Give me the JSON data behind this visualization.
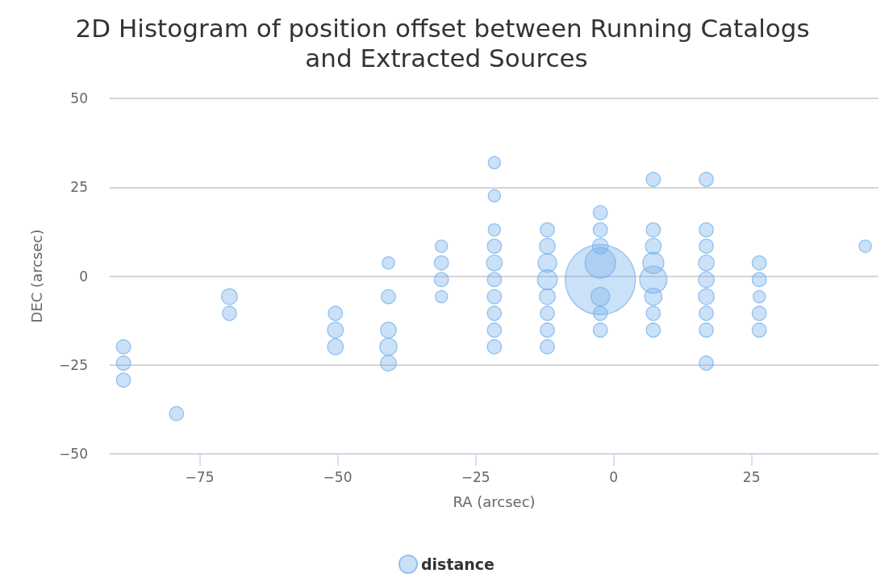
{
  "chart_data": {
    "type": "bubble",
    "title": "2D Histogram of position offset between Running Catalogs and Extracted Sources",
    "xlabel": "RA (arcsec)",
    "ylabel": "DEC (arcsec)",
    "xlim": [
      -91.3,
      48
    ],
    "xticks": [
      {
        "value": -75,
        "label": "−75"
      },
      {
        "value": -50,
        "label": "−50"
      },
      {
        "value": -25,
        "label": "−25"
      },
      0,
      25
    ],
    "ylim": [
      -50,
      50
    ],
    "yticks": [
      {
        "value": -50,
        "label": "−50"
      },
      {
        "value": -25,
        "label": "−25"
      },
      0,
      25,
      50
    ],
    "grid": "y",
    "legend": "bottom",
    "series": [
      {
        "name": "distance",
        "color": "#7cb5ec",
        "x": [
          -88.8,
          -88.8,
          -88.8,
          -79.2,
          -69.6,
          -69.6,
          -50.4,
          -50.4,
          -50.4,
          -40.8,
          -40.8,
          -40.8,
          -40.8,
          -40.8,
          -31.2,
          -31.2,
          -31.2,
          -31.2,
          -21.6,
          -21.6,
          -21.6,
          -21.6,
          -21.6,
          -21.6,
          -21.6,
          -21.6,
          -21.6,
          -21.6,
          -12.0,
          -12.0,
          -12.0,
          -12.0,
          -12.0,
          -12.0,
          -12.0,
          -12.0,
          -2.4,
          -2.4,
          -2.4,
          -2.4,
          -2.4,
          -2.4,
          -2.4,
          -2.4,
          7.2,
          7.2,
          7.2,
          7.2,
          7.2,
          7.2,
          7.2,
          7.2,
          16.8,
          16.8,
          16.8,
          16.8,
          16.8,
          16.8,
          16.8,
          16.8,
          16.8,
          26.4,
          26.4,
          26.4,
          26.4,
          26.4,
          45.6
        ],
        "values": [
          -19.9,
          -24.5,
          -29.3,
          -38.7,
          -5.8,
          -10.5,
          -10.5,
          -15.2,
          -19.9,
          3.7,
          -5.8,
          -15.2,
          -19.9,
          -24.5,
          8.4,
          3.7,
          -1.0,
          -5.8,
          31.9,
          22.6,
          13.0,
          8.4,
          3.7,
          -1.0,
          -5.8,
          -10.5,
          -15.2,
          -19.9,
          13.0,
          8.4,
          3.7,
          -1.0,
          -5.8,
          -10.5,
          -15.2,
          -19.9,
          17.8,
          13.0,
          8.4,
          3.7,
          -1.0,
          -5.8,
          -10.5,
          -15.2,
          27.2,
          13.0,
          8.4,
          3.7,
          -1.0,
          -5.8,
          -10.5,
          -15.2,
          27.2,
          13.0,
          8.4,
          3.7,
          -1.0,
          -5.8,
          -10.5,
          -15.2,
          -24.5,
          3.7,
          -1.0,
          -5.8,
          -10.5,
          -15.2,
          8.4
        ],
        "sizes": [
          0.04,
          0.04,
          0.04,
          0.04,
          0.05,
          0.04,
          0.04,
          0.05,
          0.05,
          0.03,
          0.04,
          0.05,
          0.06,
          0.05,
          0.03,
          0.04,
          0.04,
          0.03,
          0.03,
          0.03,
          0.03,
          0.04,
          0.05,
          0.04,
          0.04,
          0.04,
          0.04,
          0.04,
          0.04,
          0.05,
          0.07,
          0.08,
          0.05,
          0.04,
          0.04,
          0.04,
          0.04,
          0.04,
          0.05,
          0.19,
          1,
          0.07,
          0.04,
          0.04,
          0.04,
          0.04,
          0.05,
          0.09,
          0.15,
          0.06,
          0.04,
          0.04,
          0.04,
          0.04,
          0.04,
          0.05,
          0.05,
          0.05,
          0.04,
          0.04,
          0.04,
          0.04,
          0.04,
          0.03,
          0.04,
          0.04,
          0.03
        ]
      }
    ]
  }
}
